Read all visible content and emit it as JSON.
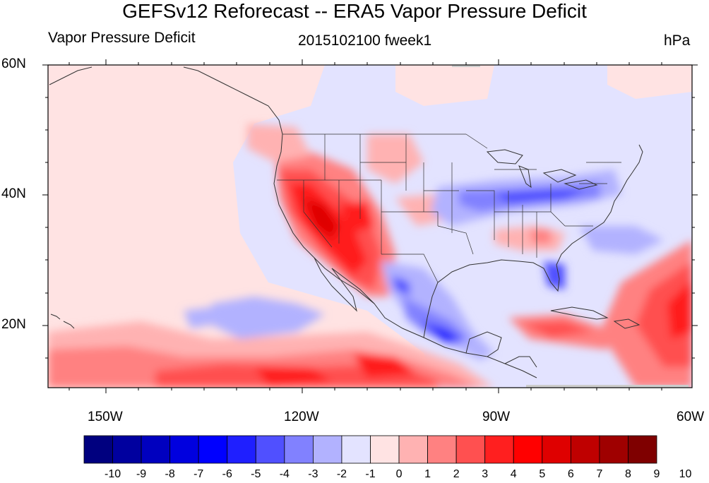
{
  "title": "GEFSv12 Reforecast -- ERA5 Vapor Pressure Deficit",
  "subtitle_left": "Vapor Pressure Deficit",
  "subtitle_center": "2015102100 fweek1",
  "subtitle_right": "hPa",
  "lat_labels": [
    "60N",
    "40N",
    "20N"
  ],
  "lon_labels": [
    "150W",
    "120W",
    "90W",
    "60W"
  ],
  "colorbar": {
    "labels": [
      "-10",
      "-9",
      "-8",
      "-7",
      "-6",
      "-5",
      "-4",
      "-3",
      "-2",
      "-1",
      "0",
      "1",
      "2",
      "3",
      "4",
      "5",
      "6",
      "7",
      "8",
      "9",
      "10"
    ],
    "colors": [
      "#00007f",
      "#00009f",
      "#0000bf",
      "#0000df",
      "#0000ff",
      "#1f1fff",
      "#5050ff",
      "#8181ff",
      "#b2b2ff",
      "#e3e3ff",
      "#ffe3e3",
      "#ffb2b2",
      "#ff8181",
      "#ff5050",
      "#ff1f1f",
      "#ff0000",
      "#df0000",
      "#bf0000",
      "#9f0000",
      "#7f0000"
    ]
  }
}
